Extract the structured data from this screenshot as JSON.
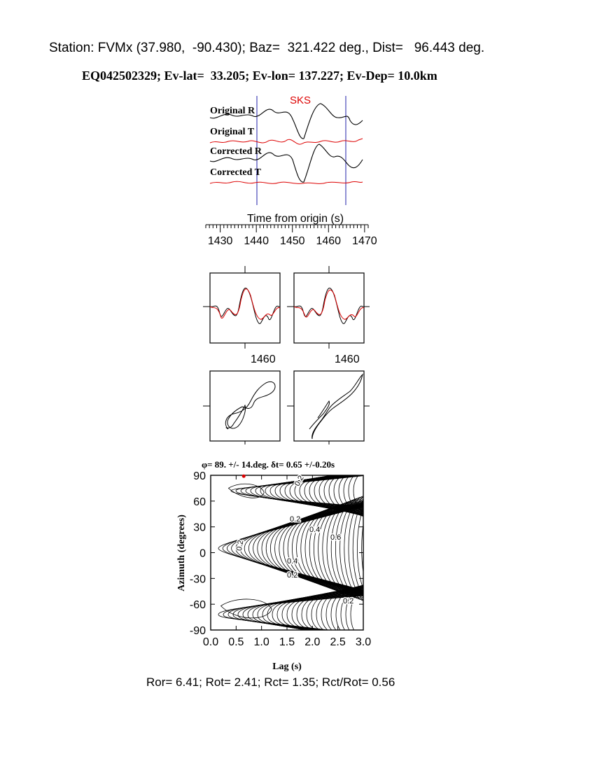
{
  "header": {
    "station_line": "Station: FVMx (37.980,  -90.430); Baz=  321.422 deg., Dist=   96.443 deg.",
    "event_line": "EQ042502329; Ev-lat=  33.205; Ev-lon= 137.227; Ev-Dep= 10.0km"
  },
  "traces": {
    "phase_label": "SKS",
    "trace_labels": [
      "Original R",
      "Original T",
      "Corrected R",
      "Corrected T"
    ],
    "time_axis_label": "Time from origin (s)",
    "time_ticks": [
      "1430",
      "1440",
      "1450",
      "1460",
      "1470"
    ],
    "window_start_s": 1441,
    "window_end_s": 1466,
    "xlim": [
      1426,
      1471
    ]
  },
  "waveform_panels": {
    "tick_labels": [
      "1460",
      "1460"
    ]
  },
  "grid_search": {
    "title": "φ= 89. +/- 14.deg. δt= 0.65 +/-0.20s",
    "xlabel": "Lag (s)",
    "ylabel": "Azimuth (degrees)",
    "x_ticks": [
      "0.0",
      "0.5",
      "1.0",
      "1.5",
      "2.0",
      "2.5",
      "3.0"
    ],
    "y_ticks": [
      "90",
      "60",
      "30",
      "0",
      "-30",
      "-60",
      "-90"
    ],
    "contour_labels": [
      "0.2",
      "0.4",
      "0.6",
      "0.2",
      "0.4",
      "0.2",
      "0.2",
      "0.2"
    ],
    "best_fit_point": {
      "lag_s": 0.65,
      "azimuth_deg": 89
    }
  },
  "footer": {
    "ratios_line": "Ror= 6.41; Rot= 2.41; Rct= 1.35; Rct/Rot= 0.56"
  },
  "colors": {
    "radial": "#000000",
    "transverse": "#dd0000",
    "window": "#2222aa",
    "phase_label": "#dd0000",
    "best_fit_marker": "#dd0000"
  },
  "chart_data": {
    "type": "heatmap",
    "title": "φ= 89. +/- 14.deg. δt= 0.65 +/-0.20s",
    "xlabel": "Lag (s)",
    "ylabel": "Azimuth (degrees)",
    "xlim": [
      0,
      3
    ],
    "ylim": [
      -90,
      90
    ],
    "best_fit": {
      "lag_s": 0.65,
      "azimuth_deg": 89
    }
  }
}
